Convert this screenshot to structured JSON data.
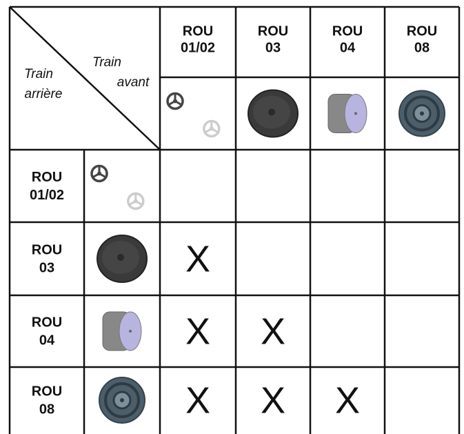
{
  "corner": {
    "front": [
      "Train",
      "avant"
    ],
    "rear": [
      "Train",
      "arrière"
    ]
  },
  "columns": [
    [
      "ROU",
      "01/02"
    ],
    [
      "ROU",
      "03"
    ],
    [
      "ROU",
      "04"
    ],
    [
      "ROU",
      "08"
    ]
  ],
  "rows": [
    {
      "label": [
        "ROU",
        "01/02"
      ],
      "cells": [
        null,
        null,
        null,
        null
      ]
    },
    {
      "label": [
        "ROU",
        "03"
      ],
      "cells": [
        "X",
        null,
        null,
        null
      ]
    },
    {
      "label": [
        "ROU",
        "04"
      ],
      "cells": [
        "X",
        "X",
        null,
        null
      ]
    },
    {
      "label": [
        "ROU",
        "08"
      ],
      "cells": [
        "X",
        "X",
        "X",
        null
      ]
    }
  ]
}
